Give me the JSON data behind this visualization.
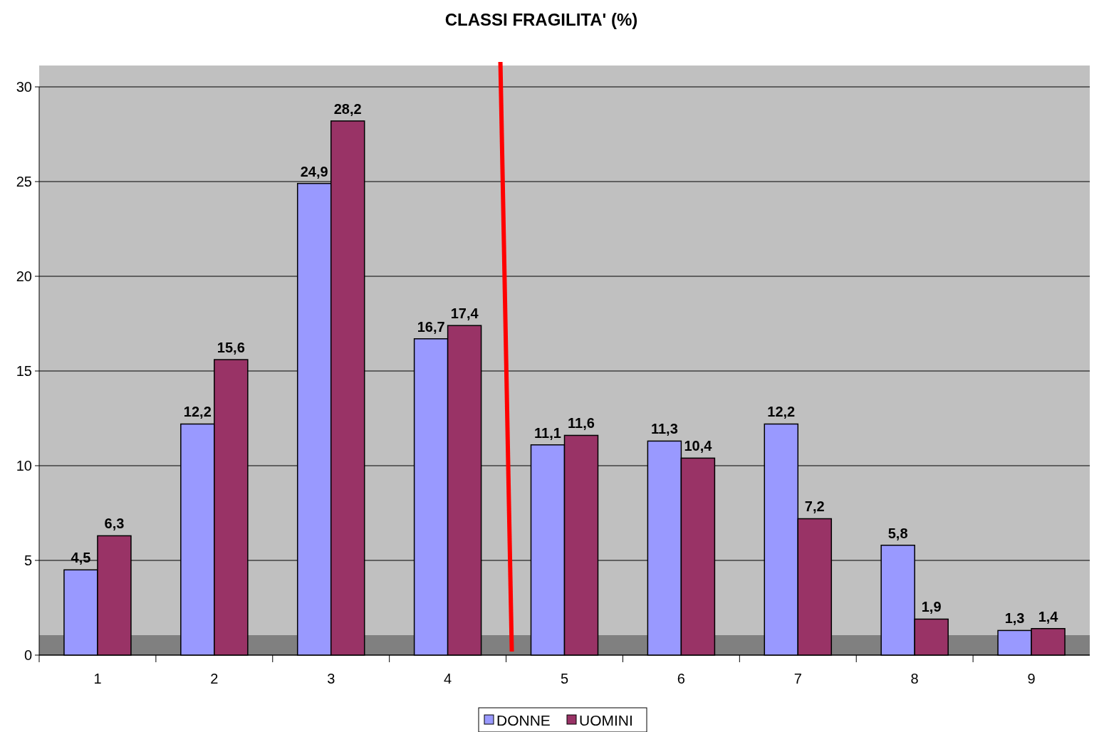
{
  "chart_data": {
    "type": "bar",
    "title": "CLASSI FRAGILITA' (%)",
    "categories": [
      "1",
      "2",
      "3",
      "4",
      "5",
      "6",
      "7",
      "8",
      "9"
    ],
    "series": [
      {
        "name": "DONNE",
        "color": "#9999ff",
        "values": [
          4.5,
          12.2,
          24.9,
          16.7,
          11.1,
          11.3,
          12.2,
          5.8,
          1.3
        ],
        "value_labels": [
          "4,5",
          "12,2",
          "24,9",
          "16,7",
          "11,1",
          "11,3",
          "12,2",
          "5,8",
          "1,3"
        ]
      },
      {
        "name": "UOMINI",
        "color": "#993366",
        "values": [
          6.3,
          15.6,
          28.2,
          17.4,
          11.6,
          10.4,
          7.2,
          1.9,
          1.4
        ],
        "value_labels": [
          "6,3",
          "15,6",
          "28,2",
          "17,4",
          "11,6",
          "10,4",
          "7,2",
          "1,9",
          "1,4"
        ]
      }
    ],
    "ylim": [
      0,
      30
    ],
    "yticks": [
      0,
      5,
      10,
      15,
      20,
      25,
      30
    ],
    "grid": "y",
    "legend": "bottom"
  }
}
